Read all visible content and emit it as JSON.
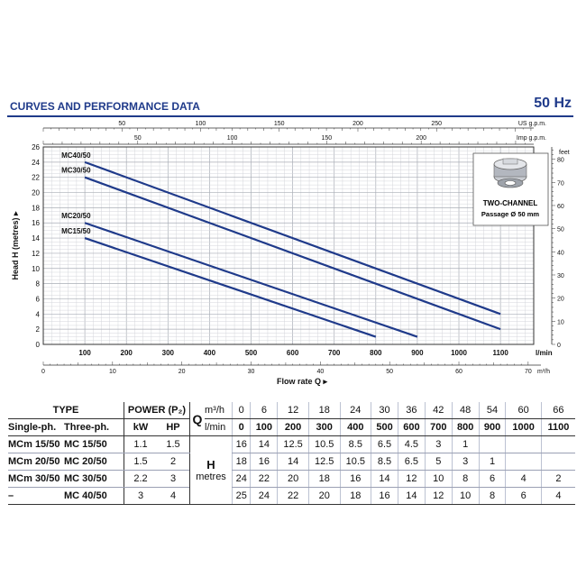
{
  "header": {
    "title": "CURVES AND PERFORMANCE DATA",
    "frequency": "50 Hz"
  },
  "inset": {
    "title": "TWO-CHANNEL",
    "subtitle": "Passage Ø 50 mm"
  },
  "colors": {
    "accent": "#1f3a8a",
    "curve": "#1f3a8a"
  },
  "chart_data": {
    "type": "line",
    "xlabel": "Flow rate Q",
    "ylabel": "Head H (metres)",
    "x_unit": "l/min",
    "xlim": [
      0,
      1180
    ],
    "ylim": [
      0,
      26
    ],
    "grid": true,
    "y_ticks": [
      0,
      2,
      4,
      6,
      8,
      10,
      12,
      14,
      16,
      18,
      20,
      22,
      24,
      26
    ],
    "x_ticks": [
      100,
      200,
      300,
      400,
      500,
      600,
      700,
      800,
      900,
      1000,
      1100
    ],
    "x_unit_label": "l/min",
    "top_axis_usgpm": {
      "unit": "US g.p.m.",
      "ticks": [
        50,
        100,
        150,
        200,
        250
      ]
    },
    "top_axis_impgpm": {
      "unit": "Imp g.p.m.",
      "ticks": [
        50,
        100,
        150,
        200
      ]
    },
    "right_axis_feet": {
      "unit": "feet",
      "ticks": [
        0,
        10,
        20,
        30,
        40,
        50,
        60,
        70,
        80
      ]
    },
    "bottom_axis_m3h": {
      "unit": "m³/h",
      "ticks": [
        0,
        10,
        20,
        30,
        40,
        50,
        60,
        70
      ]
    },
    "series": [
      {
        "name": "MC40/50",
        "x": [
          100,
          1100
        ],
        "y": [
          24,
          4
        ]
      },
      {
        "name": "MC30/50",
        "x": [
          100,
          1100
        ],
        "y": [
          22,
          2
        ]
      },
      {
        "name": "MC20/50",
        "x": [
          100,
          900
        ],
        "y": [
          16,
          1
        ]
      },
      {
        "name": "MC15/50",
        "x": [
          100,
          800
        ],
        "y": [
          14,
          1
        ]
      }
    ]
  },
  "table": {
    "h_type": "TYPE",
    "h_power": "POWER (P₂)",
    "h_single": "Single-ph.",
    "h_three": "Three-ph.",
    "h_kw": "kW",
    "h_hp": "HP",
    "q_symbol": "Q",
    "q_unit1": "m³/h",
    "q_unit2": "l/min",
    "h_label": "H",
    "h_unit": "metres",
    "q_m3h": [
      "0",
      "6",
      "12",
      "18",
      "24",
      "30",
      "36",
      "42",
      "48",
      "54",
      "60",
      "66"
    ],
    "q_lmin": [
      "0",
      "100",
      "200",
      "300",
      "400",
      "500",
      "600",
      "700",
      "800",
      "900",
      "1000",
      "1100"
    ],
    "rows": [
      {
        "single": "MCm 15/50",
        "three": "MC 15/50",
        "kw": "1.1",
        "hp": "1.5",
        "h": [
          "16",
          "14",
          "12.5",
          "10.5",
          "8.5",
          "6.5",
          "4.5",
          "3",
          "1",
          "",
          "",
          ""
        ]
      },
      {
        "single": "MCm 20/50",
        "three": "MC 20/50",
        "kw": "1.5",
        "hp": "2",
        "h": [
          "18",
          "16",
          "14",
          "12.5",
          "10.5",
          "8.5",
          "6.5",
          "5",
          "3",
          "1",
          "",
          ""
        ]
      },
      {
        "single": "MCm 30/50",
        "three": "MC 30/50",
        "kw": "2.2",
        "hp": "3",
        "h": [
          "24",
          "22",
          "20",
          "18",
          "16",
          "14",
          "12",
          "10",
          "8",
          "6",
          "4",
          "2"
        ]
      },
      {
        "single": "–",
        "three": "MC 40/50",
        "kw": "3",
        "hp": "4",
        "h": [
          "25",
          "24",
          "22",
          "20",
          "18",
          "16",
          "14",
          "12",
          "10",
          "8",
          "6",
          "4"
        ]
      }
    ]
  }
}
